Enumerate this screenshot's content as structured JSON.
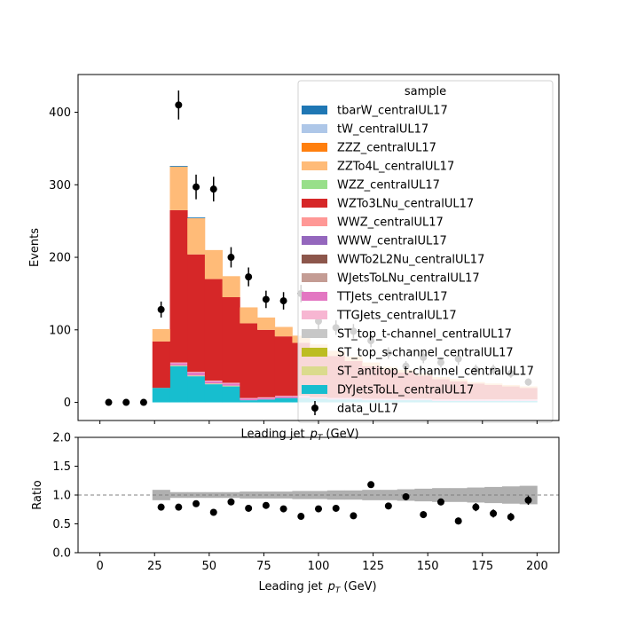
{
  "chart_data": [
    {
      "type": "bar",
      "subtype": "stacked-histogram-with-data-points",
      "xlabel": "Leading jet  p_T (GeV)",
      "xlabel_main": "Leading jet",
      "xlabel_sym": "p",
      "xlabel_sub": "T",
      "xlabel_unit": "(GeV)",
      "ylabel": "Events",
      "xlim": [
        -10,
        210
      ],
      "ylim": [
        -25,
        452
      ],
      "xticks": [
        0,
        25,
        50,
        75,
        100,
        125,
        150,
        175,
        200
      ],
      "yticks": [
        0,
        100,
        200,
        300,
        400
      ],
      "legend": {
        "title": "sample",
        "placement": "top-right",
        "entries": [
          {
            "label": "tbarW_centralUL17",
            "color": "#1f77b4"
          },
          {
            "label": "tW_centralUL17",
            "color": "#aec7e8"
          },
          {
            "label": "ZZZ_centralUL17",
            "color": "#ff7f0e"
          },
          {
            "label": "ZZTo4L_centralUL17",
            "color": "#ffbb78"
          },
          {
            "label": "WZZ_centralUL17",
            "color": "#98df8a"
          },
          {
            "label": "WZTo3LNu_centralUL17",
            "color": "#d62728"
          },
          {
            "label": "WWZ_centralUL17",
            "color": "#ff9896"
          },
          {
            "label": "WWW_centralUL17",
            "color": "#9467bd"
          },
          {
            "label": "WWTo2L2Nu_centralUL17",
            "color": "#8c564b"
          },
          {
            "label": "WJetsToLNu_centralUL17",
            "color": "#c49c94"
          },
          {
            "label": "TTJets_centralUL17",
            "color": "#e377c2"
          },
          {
            "label": "TTGJets_centralUL17",
            "color": "#f7b6d2"
          },
          {
            "label": "ST_top_t-channel_centralUL17",
            "color": "#c7c7c7"
          },
          {
            "label": "ST_top_s-channel_centralUL17",
            "color": "#bcbd22"
          },
          {
            "label": "ST_antitop_t-channel_centralUL17",
            "color": "#dbdb8d"
          },
          {
            "label": "DYJetsToLL_centralUL17",
            "color": "#17becf"
          },
          {
            "label": "data_UL17",
            "marker": "point"
          }
        ]
      },
      "bin_edges": [
        0,
        8,
        16,
        24,
        32,
        40,
        48,
        56,
        64,
        72,
        80,
        88,
        96,
        104,
        112,
        120,
        128,
        136,
        144,
        152,
        160,
        168,
        176,
        184,
        192,
        200
      ],
      "series": [
        {
          "name": "DYJetsToLL_centralUL17",
          "color": "#17becf",
          "values": [
            0,
            0,
            0,
            20,
            50,
            36,
            25,
            22,
            3,
            4,
            6,
            6,
            5,
            4,
            4,
            3,
            3,
            3,
            3,
            2,
            2,
            2,
            2,
            2,
            2
          ]
        },
        {
          "name": "ST_antitop_t-channel_centralUL17",
          "color": "#dbdb8d",
          "values": [
            0,
            0,
            0,
            0,
            1,
            1,
            1,
            1,
            0,
            0,
            0,
            0,
            0,
            0,
            0,
            0,
            0,
            0,
            0,
            0,
            0,
            0,
            0,
            0,
            0
          ]
        },
        {
          "name": "TTJets_centralUL17",
          "color": "#e377c2",
          "values": [
            0,
            0,
            0,
            0,
            3,
            4,
            3,
            3,
            2,
            2,
            2,
            2,
            1,
            1,
            1,
            1,
            1,
            1,
            1,
            1,
            1,
            1,
            1,
            1,
            1
          ]
        },
        {
          "name": "TTGJets_centralUL17",
          "color": "#f7b6d2",
          "values": [
            0,
            0,
            0,
            0,
            1,
            1,
            1,
            1,
            1,
            1,
            1,
            1,
            1,
            1,
            1,
            1,
            1,
            1,
            1,
            1,
            1,
            1,
            1,
            1,
            1
          ]
        },
        {
          "name": "WZTo3LNu_centralUL17",
          "color": "#d62728",
          "values": [
            0,
            0,
            0,
            64,
            210,
            162,
            140,
            118,
            103,
            93,
            82,
            73,
            65,
            58,
            51,
            45,
            40,
            36,
            32,
            28,
            25,
            22,
            20,
            18,
            16
          ]
        },
        {
          "name": "ZZTo4L_centralUL17",
          "color": "#ffbb78",
          "values": [
            0,
            0,
            0,
            17,
            60,
            50,
            40,
            29,
            22,
            17,
            13,
            10,
            8,
            7,
            6,
            5,
            4,
            4,
            3,
            3,
            3,
            2,
            2,
            2,
            2
          ]
        },
        {
          "name": "tbarW_centralUL17",
          "color": "#1f77b4",
          "values": [
            0,
            0,
            0,
            0,
            1,
            1,
            0,
            0,
            0,
            0,
            0,
            0,
            0,
            0,
            0,
            0,
            0,
            0,
            0,
            0,
            0,
            0,
            0,
            0,
            0
          ]
        }
      ],
      "data_points": {
        "name": "data_UL17",
        "x": [
          4,
          12,
          20,
          28,
          36,
          44,
          52,
          60,
          68,
          76,
          84,
          92,
          100,
          108,
          116,
          124,
          132,
          140,
          148,
          156,
          164,
          172,
          180,
          188,
          196
        ],
        "y": [
          0,
          0,
          0,
          128,
          410,
          297,
          294,
          200,
          173,
          142,
          140,
          150,
          112,
          103,
          98,
          85,
          68,
          50,
          62,
          55,
          60,
          45,
          45,
          40,
          28
        ],
        "err": [
          0,
          0,
          0,
          11,
          20,
          17,
          17,
          14,
          13,
          12,
          12,
          12,
          11,
          10,
          10,
          9,
          8,
          7,
          8,
          7,
          8,
          7,
          7,
          6,
          5
        ]
      }
    },
    {
      "type": "scatter",
      "subtype": "ratio-panel",
      "xlabel": "Leading jet  p_T (GeV)",
      "xlabel_main": "Leading jet",
      "xlabel_sym": "p",
      "xlabel_sub": "T",
      "xlabel_unit": "(GeV)",
      "ylabel": "Ratio",
      "xlim": [
        -10,
        210
      ],
      "ylim": [
        0.0,
        2.0
      ],
      "xticks": [
        0,
        25,
        50,
        75,
        100,
        125,
        150,
        175,
        200
      ],
      "yticks": [
        0.0,
        0.5,
        1.0,
        1.5,
        2.0
      ],
      "ytick_labels": [
        "0.0",
        "0.5",
        "1.0",
        "1.5",
        "2.0"
      ],
      "reference_line": 1.0,
      "band": {
        "color": "#b0b0b0",
        "bin_edges": [
          24,
          32,
          40,
          48,
          56,
          64,
          72,
          80,
          88,
          96,
          104,
          112,
          120,
          128,
          136,
          144,
          152,
          160,
          168,
          176,
          184,
          192,
          200
        ],
        "half_width": [
          0.09,
          0.05,
          0.05,
          0.05,
          0.05,
          0.06,
          0.06,
          0.06,
          0.07,
          0.07,
          0.08,
          0.08,
          0.09,
          0.09,
          0.1,
          0.11,
          0.12,
          0.12,
          0.13,
          0.14,
          0.15,
          0.16,
          0.2
        ]
      },
      "points": {
        "x": [
          28,
          36,
          44,
          52,
          60,
          68,
          76,
          84,
          92,
          100,
          108,
          116,
          124,
          132,
          140,
          148,
          156,
          164,
          172,
          180,
          188,
          196
        ],
        "y": [
          0.79,
          0.79,
          0.85,
          0.7,
          0.88,
          0.77,
          0.82,
          0.76,
          0.63,
          0.76,
          0.77,
          0.64,
          1.18,
          0.81,
          0.97,
          0.66,
          0.88,
          0.55,
          0.79,
          0.68,
          0.62,
          0.91
        ],
        "err": [
          0.03,
          0.02,
          0.02,
          0.02,
          0.03,
          0.03,
          0.03,
          0.03,
          0.03,
          0.03,
          0.04,
          0.04,
          0.05,
          0.05,
          0.06,
          0.06,
          0.06,
          0.06,
          0.07,
          0.07,
          0.07,
          0.08
        ]
      }
    }
  ]
}
